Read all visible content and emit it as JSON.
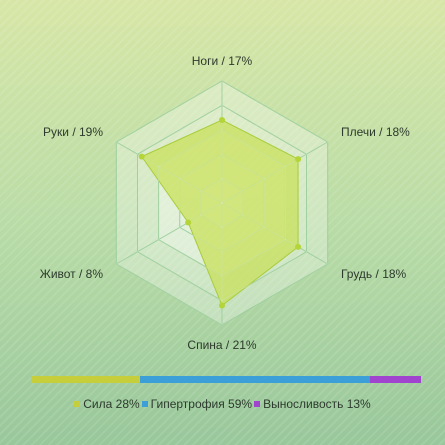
{
  "chart_data": {
    "type": "radar",
    "axes": [
      {
        "name": "Ноги",
        "value": 17,
        "label": "Ноги / 17%"
      },
      {
        "name": "Плечи",
        "value": 18,
        "label": "Плечи / 18%"
      },
      {
        "name": "Грудь",
        "value": 18,
        "label": "Грудь / 18%"
      },
      {
        "name": "Спина",
        "value": 21,
        "label": "Спина / 21%"
      },
      {
        "name": "Живот",
        "value": 8,
        "label": "Живот / 8%"
      },
      {
        "name": "Руки",
        "value": 19,
        "label": "Руки / 19%"
      }
    ],
    "unit": "%",
    "rmax": 25,
    "rings": 5,
    "colors": {
      "fill": "#c8e05a",
      "stroke": "#a8cc3a",
      "point": "#b4d437",
      "grid": "#74bb74",
      "web": "#ffffff"
    }
  },
  "split": {
    "items": [
      {
        "name": "Сила",
        "value": 28,
        "color": "#c6cf3b",
        "label": "Сила 28%"
      },
      {
        "name": "Гипертрофия",
        "value": 59,
        "color": "#3d9fd8",
        "label": "Гипертрофия 59%"
      },
      {
        "name": "Выносливость",
        "value": 13,
        "color": "#a044d0",
        "label": "Выносливость 13%"
      }
    ]
  }
}
